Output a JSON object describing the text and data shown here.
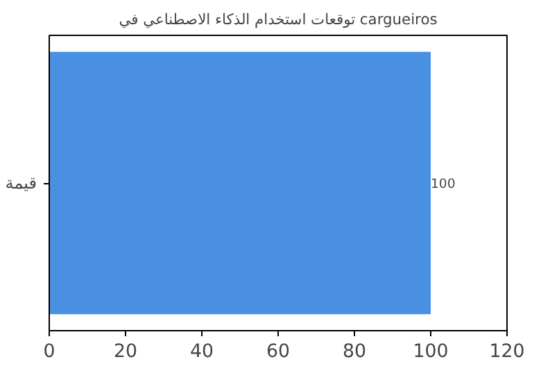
{
  "chart_data": {
    "type": "bar",
    "orientation": "horizontal",
    "title": "توقعات استخدام الذكاء الاصطناعي في cargueiros",
    "categories": [
      "قيمة"
    ],
    "values": [
      100
    ],
    "color": "#4a90e2",
    "xlim": [
      0,
      120
    ],
    "xticks": [
      0,
      20,
      40,
      60,
      80,
      100,
      120
    ],
    "data_labels": true
  }
}
